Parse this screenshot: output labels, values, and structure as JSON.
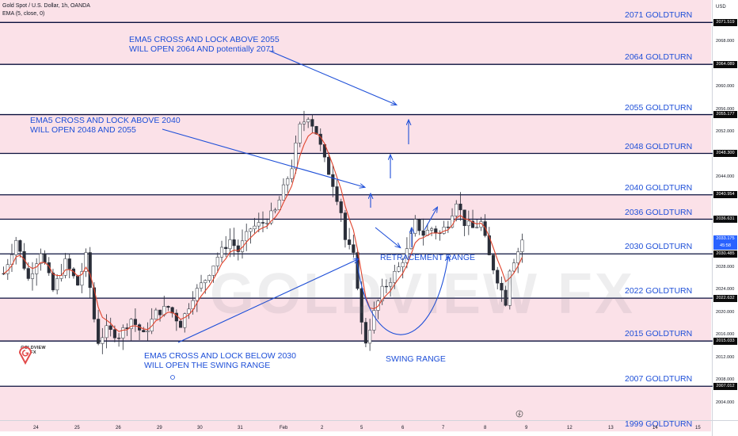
{
  "header": {
    "symbol_line": "Gold Spot / U.S. Dollar, 1h, OANDA",
    "indicator_line": "EMA (5, close, 0)"
  },
  "brand": {
    "logo_text": "GOLDVIEW FX",
    "watermark": "GOLDVIEW FX"
  },
  "annotations": {
    "top": "EMA5 CROSS AND LOCK ABOVE 2055\nWILL OPEN 2064 AND potentially 2071",
    "mid": "EMA5 CROSS AND LOCK ABOVE 2040\nWILL OPEN 2048 AND 2055",
    "bottom": "EMA5 CROSS AND LOCK BELOW 2030\nWILL OPEN  THE SWING RANGE",
    "retracement": "RETRACEMENT RANGE",
    "swing": "SWING RANGE"
  },
  "colors": {
    "level_line": "#0a0f3c",
    "zone_fill": "#fbe1e8",
    "annotation": "#1e4fd8",
    "candle_up": "#2a2e39",
    "candle_down": "#2a2e39",
    "ema": "#e0432c",
    "current_price_tag": "#2962ff"
  },
  "chart_data": {
    "type": "candlestick",
    "instrument": "Gold Spot / U.S. Dollar",
    "timeframe": "1h",
    "currency": "USD",
    "indicator": "EMA (5, close, 0)",
    "ylim": [
      2001,
      2075.5
    ],
    "grid": false,
    "y_ticks": [
      2004,
      2008,
      2012,
      2016,
      2020,
      2024,
      2028,
      2036,
      2044,
      2052,
      2056,
      2060,
      2068
    ],
    "x_ticks": [
      "24",
      "25",
      "26",
      "29",
      "30",
      "31",
      "Feb",
      "2",
      "5",
      "6",
      "7",
      "8",
      "9",
      "12",
      "13",
      "14",
      "15"
    ],
    "levels": [
      {
        "label": "2071 GOLDTURN",
        "price": 2071.519,
        "tag": "2071.519"
      },
      {
        "label": "2064 GOLDTURN",
        "price": 2064.089,
        "tag": "2064.089"
      },
      {
        "label": "2055 GOLDTURN",
        "price": 2055.177,
        "tag": "2055.177"
      },
      {
        "label": "2048 GOLDTURN",
        "price": 2048.3,
        "tag": "2048.300"
      },
      {
        "label": "2040 GOLDTURN",
        "price": 2040.954,
        "tag": "2040.954"
      },
      {
        "label": "2036 GOLDTURN",
        "price": 2036.631,
        "tag": "2036.631"
      },
      {
        "label": "2030 GOLDTURN",
        "price": 2030.485,
        "tag": "2030.485"
      },
      {
        "label": "2022 GOLDTURN",
        "price": 2022.632,
        "tag": "2022.632"
      },
      {
        "label": "2015 GOLDTURN",
        "price": 2015.033,
        "tag": "2015.033"
      },
      {
        "label": "2007 GOLDTURN",
        "price": 2007.012,
        "tag": "2007.012"
      },
      {
        "label": "1999 GOLDTURN",
        "price": 1999.0,
        "tag": ""
      }
    ],
    "current_price": {
      "price": 2033.175,
      "tag": "2033.175",
      "countdown": "45:58"
    },
    "price_path": [
      [
        0,
        2027
      ],
      [
        3,
        2033
      ],
      [
        6,
        2026
      ],
      [
        9,
        2031
      ],
      [
        12,
        2024
      ],
      [
        15,
        2029
      ],
      [
        18,
        2025
      ],
      [
        20,
        2030
      ],
      [
        22,
        2019
      ],
      [
        23,
        2015
      ],
      [
        25,
        2017
      ],
      [
        28,
        2016
      ],
      [
        31,
        2019
      ],
      [
        34,
        2016
      ],
      [
        37,
        2020
      ],
      [
        40,
        2021
      ],
      [
        43,
        2018
      ],
      [
        46,
        2023
      ],
      [
        49,
        2026
      ],
      [
        52,
        2030
      ],
      [
        55,
        2033
      ],
      [
        57,
        2031
      ],
      [
        60,
        2035
      ],
      [
        63,
        2036
      ],
      [
        66,
        2038
      ],
      [
        68,
        2042
      ],
      [
        70,
        2046
      ],
      [
        72,
        2053
      ],
      [
        74,
        2055
      ],
      [
        76,
        2052
      ],
      [
        78,
        2047
      ],
      [
        80,
        2043
      ],
      [
        82,
        2038
      ],
      [
        83,
        2033
      ],
      [
        85,
        2030
      ],
      [
        86,
        2025
      ],
      [
        87,
        2018
      ],
      [
        88,
        2015
      ],
      [
        90,
        2020
      ],
      [
        92,
        2024
      ],
      [
        94,
        2026
      ],
      [
        96,
        2028
      ],
      [
        98,
        2031
      ],
      [
        100,
        2036
      ],
      [
        102,
        2034
      ],
      [
        104,
        2035
      ],
      [
        106,
        2034
      ],
      [
        108,
        2036
      ],
      [
        110,
        2040
      ],
      [
        112,
        2036
      ],
      [
        114,
        2035
      ],
      [
        116,
        2036
      ],
      [
        118,
        2030
      ],
      [
        120,
        2026
      ],
      [
        122,
        2022
      ],
      [
        123,
        2028
      ],
      [
        125,
        2031
      ],
      [
        126,
        2033
      ]
    ],
    "swing_range": {
      "price_low": 2014.5,
      "price_high": 2030
    }
  }
}
